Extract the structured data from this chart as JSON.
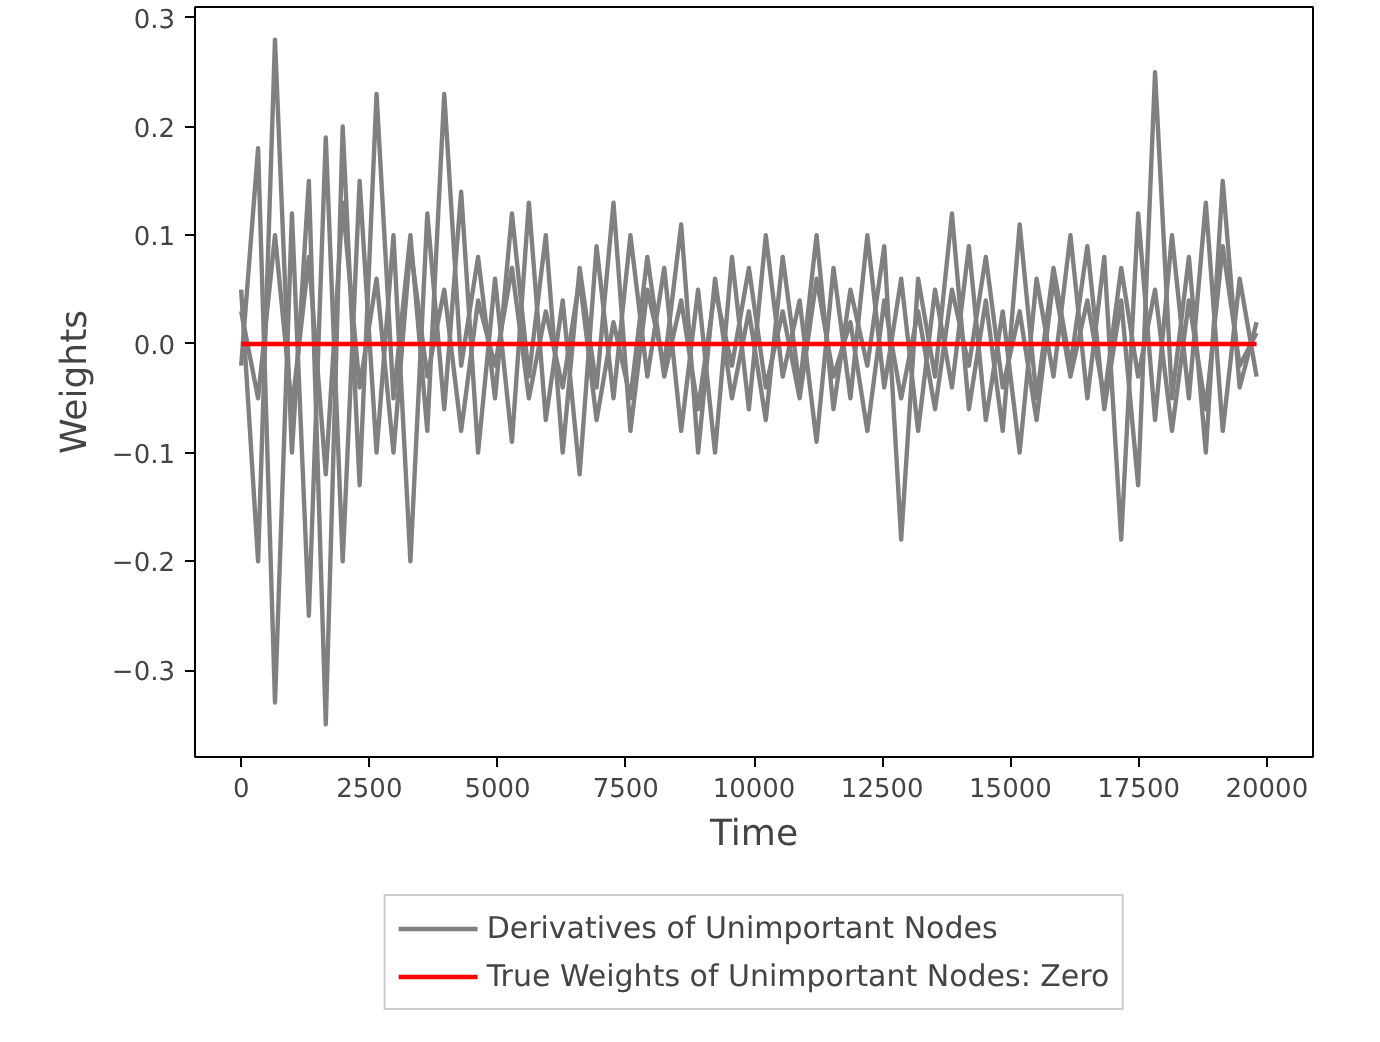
{
  "chart_data": {
    "type": "line",
    "xlabel": "Time",
    "ylabel": "Weights",
    "xlim": [
      -900,
      20900
    ],
    "ylim": [
      -0.38,
      0.31
    ],
    "xticks": [
      0,
      2500,
      5000,
      7500,
      10000,
      12500,
      15000,
      17500,
      20000
    ],
    "yticks": [
      {
        "value": -0.3,
        "label": "−0.3"
      },
      {
        "value": -0.2,
        "label": "−0.2"
      },
      {
        "value": -0.1,
        "label": "−0.1"
      },
      {
        "value": 0,
        "label": "0.0"
      },
      {
        "value": 0.1,
        "label": "0.1"
      },
      {
        "value": 0.2,
        "label": "0.2"
      },
      {
        "value": 0.3,
        "label": "0.3"
      }
    ],
    "grid": false,
    "legend": "bottom",
    "marker": "none",
    "line_style": "solid",
    "x": [
      0,
      330,
      660,
      990,
      1320,
      1650,
      1980,
      2310,
      2640,
      2970,
      3300,
      3630,
      3960,
      4290,
      4620,
      4950,
      5280,
      5610,
      5940,
      6270,
      6600,
      6930,
      7260,
      7590,
      7920,
      8250,
      8580,
      8910,
      9240,
      9570,
      9900,
      10230,
      10560,
      10890,
      11220,
      11550,
      11880,
      12210,
      12540,
      12870,
      13200,
      13530,
      13860,
      14190,
      14520,
      14850,
      15180,
      15510,
      15840,
      16170,
      16500,
      16830,
      17160,
      17490,
      17820,
      18150,
      18480,
      18810,
      19140,
      19470,
      19800
    ],
    "series": [
      {
        "name": "Derivatives of Unimportant Nodes",
        "color": "#808080",
        "values": [
          0.05,
          -0.2,
          0.28,
          -0.1,
          0.15,
          -0.35,
          0.2,
          -0.13,
          0.23,
          -0.05,
          0.1,
          -0.08,
          0.23,
          -0.02,
          0.08,
          -0.05,
          0.12,
          -0.03,
          0.1,
          -0.1,
          0.07,
          -0.04,
          0.13,
          -0.08,
          0.05,
          -0.02,
          0.11,
          -0.1,
          0.06,
          -0.05,
          0.03,
          -0.07,
          0.08,
          -0.04,
          0.1,
          -0.06,
          0.05,
          -0.02,
          0.09,
          -0.18,
          0.06,
          -0.03,
          0.12,
          -0.06,
          0.04,
          -0.08,
          0.11,
          -0.05,
          0.07,
          -0.02,
          0.09,
          -0.06,
          0.04,
          -0.13,
          0.25,
          -0.05,
          0.08,
          -0.1,
          0.15,
          -0.04,
          0.02
        ]
      },
      {
        "color": "#808080",
        "values": [
          -0.02,
          0.18,
          -0.33,
          0.12,
          -0.25,
          0.19,
          -0.2,
          0.15,
          -0.1,
          0.1,
          -0.2,
          0.12,
          -0.06,
          0.14,
          -0.1,
          0.06,
          -0.09,
          0.13,
          -0.07,
          0.04,
          -0.12,
          0.09,
          -0.05,
          0.1,
          -0.03,
          0.07,
          -0.08,
          0.05,
          -0.1,
          0.08,
          -0.06,
          0.1,
          -0.03,
          0.04,
          -0.09,
          0.07,
          -0.05,
          0.1,
          -0.04,
          0.06,
          -0.08,
          0.05,
          -0.04,
          0.09,
          -0.07,
          0.03,
          -0.1,
          0.06,
          -0.03,
          0.1,
          -0.05,
          0.08,
          -0.18,
          0.12,
          -0.07,
          0.1,
          -0.05,
          0.13,
          -0.08,
          0.06,
          -0.03
        ]
      },
      {
        "color": "#808080",
        "values": [
          0.03,
          -0.05,
          0.1,
          -0.06,
          0.08,
          -0.12,
          0.13,
          -0.04,
          0.06,
          -0.1,
          0.09,
          -0.03,
          0.05,
          -0.08,
          0.04,
          -0.02,
          0.07,
          -0.05,
          0.03,
          -0.04,
          0.06,
          -0.07,
          0.02,
          -0.05,
          0.08,
          -0.03,
          0.04,
          -0.06,
          0.05,
          -0.02,
          0.07,
          -0.04,
          0.03,
          -0.05,
          0.06,
          -0.03,
          0.02,
          -0.08,
          0.04,
          -0.05,
          0.03,
          -0.06,
          0.05,
          -0.02,
          0.08,
          -0.04,
          0.03,
          -0.07,
          0.06,
          -0.03,
          0.04,
          -0.05,
          0.07,
          -0.03,
          0.05,
          -0.08,
          0.04,
          -0.06,
          0.09,
          -0.02,
          0.01
        ]
      },
      {
        "name": "True Weights of Unimportant Nodes: Zero",
        "color": "#ff0000",
        "x": [
          0,
          19800
        ],
        "values": [
          0,
          0
        ]
      }
    ]
  }
}
